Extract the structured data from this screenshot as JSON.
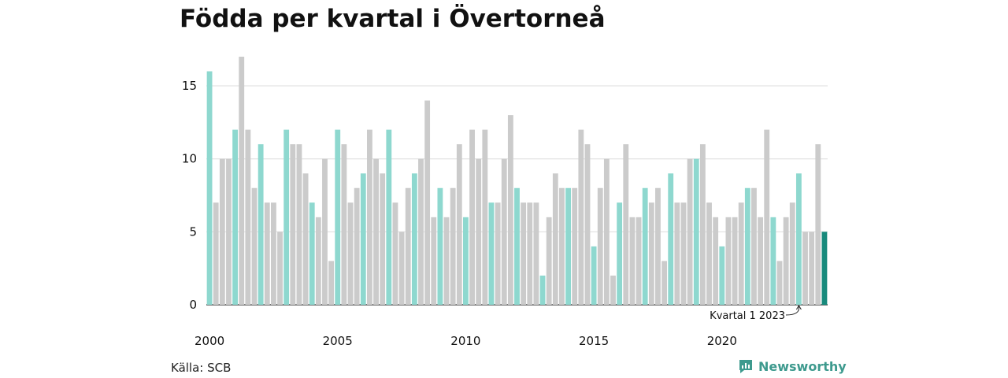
{
  "title": "Födda per kvartal i Övertorneå",
  "source": "Källa: SCB",
  "brand": {
    "name": "Newsworthy",
    "color": "#3e9a8e"
  },
  "colors": {
    "q1": "#8ed8cf",
    "other": "#cbcbcb",
    "highlight": "#178a7c",
    "grid": "#dddddd"
  },
  "chart_data": {
    "type": "bar",
    "start_year": 2000,
    "ylim": [
      0,
      17
    ],
    "yticks": [
      0,
      5,
      10,
      15
    ],
    "xticks": [
      "2000",
      "2005",
      "2010",
      "2015",
      "2020"
    ],
    "values": [
      16,
      7,
      10,
      10,
      12,
      17,
      12,
      8,
      11,
      7,
      7,
      5,
      12,
      11,
      11,
      9,
      7,
      6,
      10,
      3,
      12,
      11,
      7,
      8,
      9,
      12,
      10,
      9,
      12,
      7,
      5,
      8,
      9,
      10,
      14,
      6,
      8,
      6,
      8,
      11,
      6,
      12,
      10,
      12,
      7,
      7,
      10,
      13,
      8,
      7,
      7,
      7,
      2,
      6,
      9,
      8,
      8,
      8,
      12,
      11,
      4,
      8,
      10,
      2,
      7,
      11,
      6,
      6,
      8,
      7,
      8,
      3,
      9,
      7,
      7,
      10,
      10,
      11,
      7,
      6,
      4,
      6,
      6,
      7,
      8,
      8,
      6,
      12,
      6,
      3,
      6,
      7,
      9,
      5,
      5,
      11,
      5
    ],
    "highlight_label": "Kvartal 1 2023"
  }
}
